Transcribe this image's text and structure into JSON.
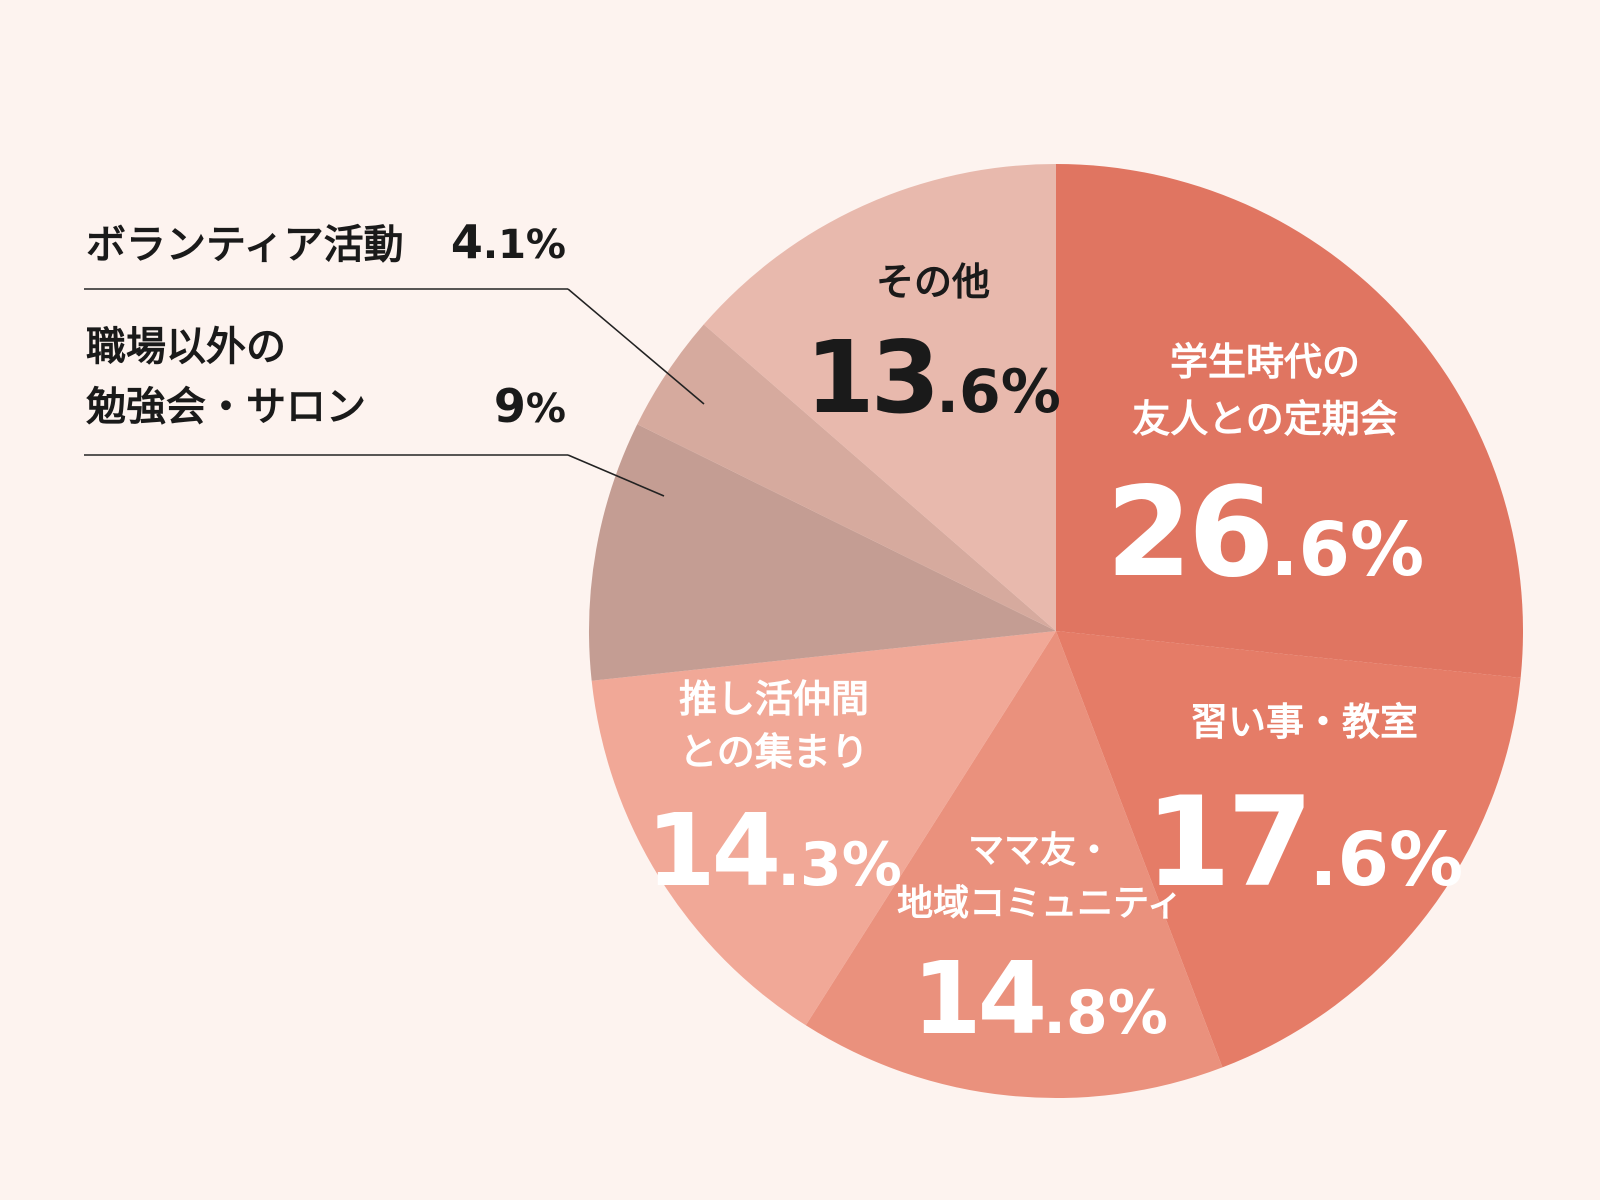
{
  "chart_data": {
    "type": "pie",
    "start_angle_deg": 0,
    "direction": "clockwise",
    "slices": [
      {
        "label_lines": [
          "学生時代の",
          "友人との定期会"
        ],
        "value": 26.6,
        "value_main": "26",
        "value_suffix": ".6%",
        "color": "#e07561"
      },
      {
        "label_lines": [
          "習い事・教室"
        ],
        "value": 17.6,
        "value_main": "17",
        "value_suffix": ".6%",
        "color": "#e57c67"
      },
      {
        "label_lines": [
          "ママ友・",
          "地域コミュニティ"
        ],
        "value": 14.8,
        "value_main": "14",
        "value_suffix": ".8%",
        "color": "#ea917d"
      },
      {
        "label_lines": [
          "推し活仲間",
          "との集まり"
        ],
        "value": 14.3,
        "value_main": "14",
        "value_suffix": ".3%",
        "color": "#f1a897"
      },
      {
        "label_lines": [
          "職場以外の",
          "勉強会・サロン"
        ],
        "value": 9,
        "value_main": "9",
        "value_suffix": "%",
        "color": "#c49d93"
      },
      {
        "label_lines": [
          "ボランティア活動"
        ],
        "value": 4.1,
        "value_main": "4",
        "value_suffix": ".1%",
        "color": "#d6aa9e"
      },
      {
        "label_lines": [
          "その他"
        ],
        "value": 13.6,
        "value_main": "13",
        "value_suffix": ".6%",
        "color": "#e8b9ad"
      }
    ]
  }
}
